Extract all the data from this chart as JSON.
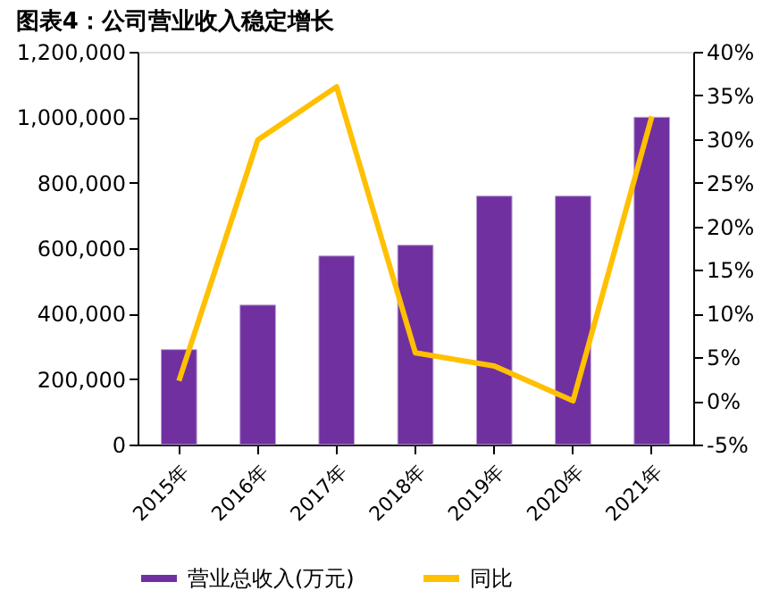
{
  "chart_data": {
    "type": "bar",
    "title": "图表4：公司营业收入稳定增长",
    "categories": [
      "2015年",
      "2016年",
      "2017年",
      "2018年",
      "2019年",
      "2020年",
      "2021年"
    ],
    "series": [
      {
        "name": "营业总收入(万元)",
        "color": "#7030a0",
        "values": [
          290000,
          426000,
          576000,
          609000,
          759000,
          759000,
          1000000
        ]
      },
      {
        "name": "同比",
        "type": "line",
        "axis": "y2",
        "color": "#ffc000",
        "values": [
          2.3,
          29.9,
          36.0,
          5.5,
          4.0,
          0.0,
          32.6
        ]
      }
    ],
    "ylim": [
      0,
      1200000
    ],
    "yticks": [
      {
        "value": 0,
        "label": "0"
      },
      {
        "value": 200000,
        "label": "200,000"
      },
      {
        "value": 400000,
        "label": "400,000"
      },
      {
        "value": 600000,
        "label": "600,000"
      },
      {
        "value": 800000,
        "label": "800,000"
      },
      {
        "value": 1000000,
        "label": "1,000,000"
      },
      {
        "value": 1200000,
        "label": "1,200,000"
      }
    ],
    "y2lim": [
      -5,
      40
    ],
    "y2ticks": [
      {
        "value": -5,
        "label": "-5%"
      },
      {
        "value": 0,
        "label": "0%"
      },
      {
        "value": 5,
        "label": "5%"
      },
      {
        "value": 10,
        "label": "10%"
      },
      {
        "value": 15,
        "label": "15%"
      },
      {
        "value": 20,
        "label": "20%"
      },
      {
        "value": 25,
        "label": "25%"
      },
      {
        "value": 30,
        "label": "30%"
      },
      {
        "value": 35,
        "label": "35%"
      },
      {
        "value": 40,
        "label": "40%"
      }
    ],
    "legend": "bottom",
    "grid": false,
    "marker": "none"
  }
}
